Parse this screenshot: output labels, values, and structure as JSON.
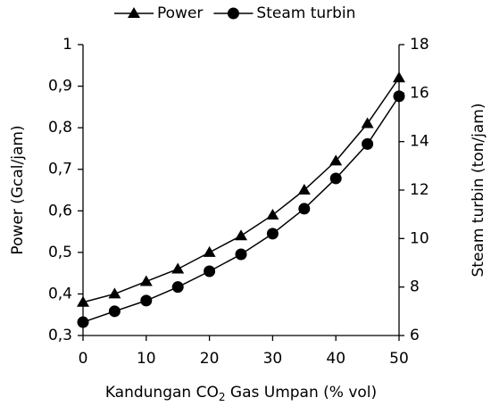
{
  "chart_data": {
    "type": "line",
    "x_label": {
      "text": "Kandungan CO",
      "sub": "2",
      "rest": " Gas Umpan (% vol)"
    },
    "y_label": "Power (Gcal/jam)",
    "y2_label": "Steam turbin (ton/jam)",
    "x": [
      0,
      5,
      10,
      15,
      20,
      25,
      30,
      35,
      40,
      45,
      50
    ],
    "xlim": [
      0,
      50
    ],
    "xticks": [
      0,
      10,
      20,
      30,
      40,
      50
    ],
    "ylim": [
      0.3,
      1
    ],
    "yticks": [
      {
        "value": 0.3,
        "label": "0,3"
      },
      {
        "value": 0.4,
        "label": "0,4"
      },
      {
        "value": 0.5,
        "label": "0,5"
      },
      {
        "value": 0.6,
        "label": "0,6"
      },
      {
        "value": 0.7,
        "label": "0,7"
      },
      {
        "value": 0.8,
        "label": "0,8"
      },
      {
        "value": 0.9,
        "label": "0,9"
      },
      1
    ],
    "y2lim": [
      6,
      18
    ],
    "y2ticks": [
      6,
      8,
      10,
      12,
      14,
      16,
      18
    ],
    "legend": "top",
    "series": [
      {
        "name": "Power",
        "color": "#000000",
        "marker": "triangle",
        "values": [
          0.38,
          0.4,
          0.43,
          0.46,
          0.5,
          0.54,
          0.59,
          0.65,
          0.72,
          0.81,
          0.92
        ]
      },
      {
        "name": "Steam turbin",
        "color": "#000000",
        "marker": "circle",
        "axis": "y2",
        "values": [
          6.55,
          7.0,
          7.44,
          8.0,
          8.65,
          9.35,
          10.2,
          11.23,
          12.48,
          13.9,
          15.87
        ]
      }
    ]
  }
}
